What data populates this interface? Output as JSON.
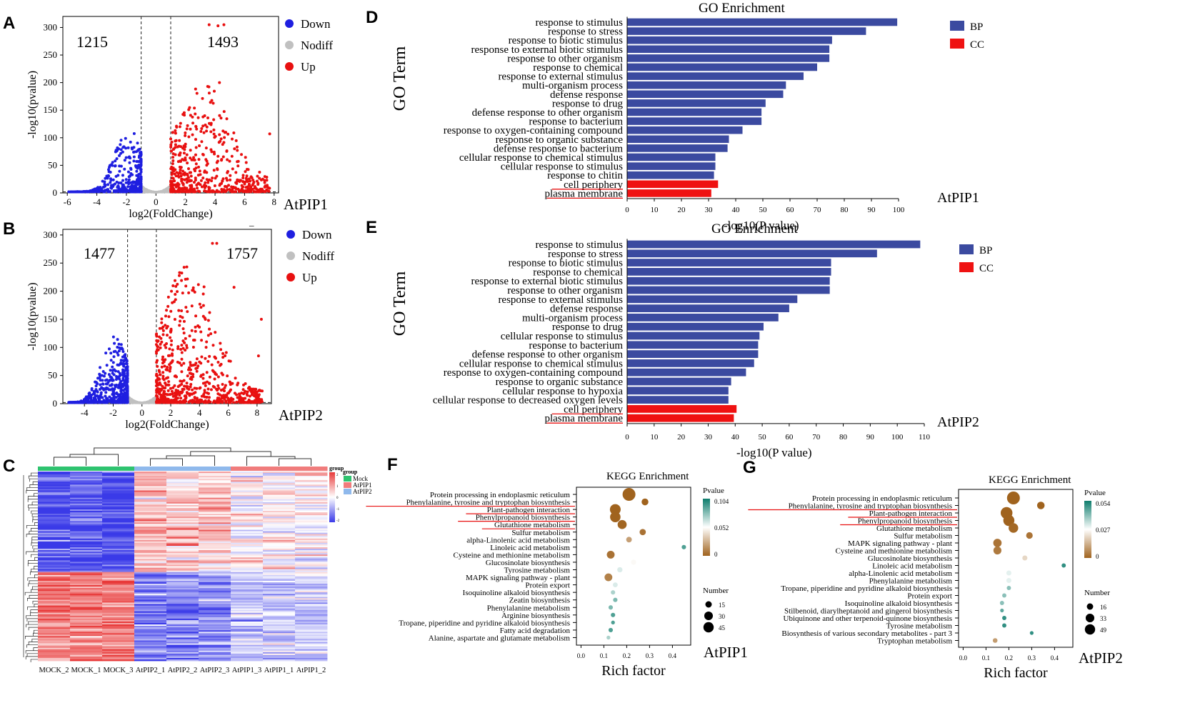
{
  "panel_labels": [
    "A",
    "B",
    "C",
    "D",
    "E",
    "F",
    "G"
  ],
  "chart_data": [
    {
      "id": "A",
      "type": "scatter",
      "subtitle": "volcano plot",
      "xlabel": "log2(FoldChange)",
      "ylabel": "-log10(pvalue)",
      "xlim": [
        -6.3,
        8.3
      ],
      "ylim": [
        0,
        320
      ],
      "xticks": [
        -6,
        -4,
        -2,
        0,
        2,
        4,
        6,
        8
      ],
      "yticks": [
        0,
        50,
        100,
        150,
        200,
        250,
        300
      ],
      "fc_threshold": 1,
      "p_threshold": 0,
      "down_count": "1215",
      "up_count": "1493",
      "legend": [
        "Down",
        "Nodiff",
        "Up"
      ],
      "colors": {
        "Down": "#1f1fe0",
        "Nodiff": "#c0c0c0",
        "Up": "#e81010"
      },
      "sample_label": "AtPIP1",
      "underline": "_",
      "highlight_points": [
        [
          3.6,
          305
        ],
        [
          4.2,
          303
        ],
        [
          4.6,
          305
        ],
        [
          4.3,
          200
        ],
        [
          7.7,
          107
        ],
        [
          3.3,
          140
        ]
      ]
    },
    {
      "id": "B",
      "type": "scatter",
      "subtitle": "volcano plot",
      "xlabel": "log2(FoldChange)",
      "ylabel": "-log10(pvalue)",
      "xlim": [
        -5.5,
        9
      ],
      "ylim": [
        0,
        310
      ],
      "xticks": [
        -4,
        -2,
        0,
        2,
        4,
        6,
        8
      ],
      "yticks": [
        0,
        50,
        100,
        150,
        200,
        250,
        300
      ],
      "fc_threshold": 1,
      "down_count": "1477",
      "up_count": "1757",
      "legend": [
        "Down",
        "Nodiff",
        "Up"
      ],
      "colors": {
        "Down": "#1f1fe0",
        "Nodiff": "#c0c0c0",
        "Up": "#e81010"
      },
      "sample_label": "AtPIP2",
      "highlight_points": [
        [
          4.9,
          285
        ],
        [
          5.2,
          285
        ],
        [
          6.4,
          207
        ],
        [
          8.3,
          150
        ],
        [
          8.1,
          85
        ]
      ]
    },
    {
      "id": "C",
      "type": "heatmap",
      "columns": [
        "MOCK_2",
        "MOCK_1",
        "MOCK_3",
        "AtPIP2_1",
        "AtPIP2_2",
        "AtPIP2_3",
        "AtPIP1_3",
        "AtPIP1_1",
        "AtPIP1_2"
      ],
      "groups": [
        {
          "name": "Mock",
          "color": "#2ec36f"
        },
        {
          "name": "AtPIP1",
          "color": "#f07c7c"
        },
        {
          "name": "AtPIP2",
          "color": "#8fb9ec"
        }
      ],
      "column_groups": [
        "Mock",
        "Mock",
        "Mock",
        "AtPIP2",
        "AtPIP2",
        "AtPIP2",
        "AtPIP1",
        "AtPIP1",
        "AtPIP1"
      ],
      "legend_title": "group",
      "group_header": "group",
      "scale_ticks": [
        "2",
        "1",
        "0",
        "-1",
        "-2"
      ],
      "low_color": "#3a3ae8",
      "mid_color": "#ffffff",
      "high_color": "#e83a3a"
    },
    {
      "id": "D",
      "type": "bar",
      "orientation": "horizontal",
      "title": "GO Enrichment",
      "xlabel": "-log10(P value)",
      "ylabel": "GO Term",
      "xlim": [
        0,
        100
      ],
      "xticks": [
        0,
        10,
        20,
        30,
        40,
        50,
        60,
        70,
        80,
        90,
        100
      ],
      "sample_label": "AtPIP1",
      "legend": [
        {
          "name": "BP",
          "color": "#3b4aa0"
        },
        {
          "name": "CC",
          "color": "#ef1212"
        }
      ],
      "categories": [
        "response to stimulus",
        "response to stress",
        "response to biotic stimulus",
        "response to external biotic stimulus",
        "response to other organism",
        "response to chemical",
        "response to external stimulus",
        "multi-organism process",
        "defense response",
        "response to drug",
        "defense response to other organism",
        "response to bacterium",
        "response to oxygen-containing compound",
        "response to organic substance",
        "defense response to bacterium",
        "cellular response to chemical stimulus",
        "cellular response to stimulus",
        "response to chitin",
        "cell periphery",
        "plasma membrane"
      ],
      "values": [
        99.5,
        88,
        75.5,
        74.5,
        74.5,
        70,
        65,
        58.5,
        57.5,
        51,
        49.5,
        49.5,
        42.5,
        37.5,
        37,
        32.5,
        32.5,
        32,
        33.5,
        31
      ],
      "groups": [
        "BP",
        "BP",
        "BP",
        "BP",
        "BP",
        "BP",
        "BP",
        "BP",
        "BP",
        "BP",
        "BP",
        "BP",
        "BP",
        "BP",
        "BP",
        "BP",
        "BP",
        "BP",
        "CC",
        "CC"
      ]
    },
    {
      "id": "E",
      "type": "bar",
      "orientation": "horizontal",
      "title": "GO Enrichment",
      "xlabel": "-log10(P value)",
      "ylabel": "GO Term",
      "xlim": [
        0,
        110
      ],
      "xticks": [
        0,
        10,
        20,
        30,
        40,
        50,
        60,
        70,
        80,
        90,
        100,
        110
      ],
      "sample_label": "AtPIP2",
      "legend": [
        {
          "name": "BP",
          "color": "#3b4aa0"
        },
        {
          "name": "CC",
          "color": "#ef1212"
        }
      ],
      "categories": [
        "response to stimulus",
        "response to stress",
        "response to biotic stimulus",
        "response to chemical",
        "response to external biotic stimulus",
        "response to other organism",
        "response to external stimulus",
        "defense response",
        "multi-organism process",
        "response to drug",
        "cellular response to stimulus",
        "response to bacterium",
        "defense response to other organism",
        "cellular response to chemical stimulus",
        "response to oxygen-containing compound",
        "response to organic substance",
        "cellular response to hypoxia",
        "cellular response to decreased oxygen levels",
        "cell periphery",
        "plasma membrane"
      ],
      "values": [
        108.5,
        92.5,
        75.5,
        75.5,
        75,
        75,
        63,
        60,
        56,
        50.5,
        49,
        48.5,
        48.5,
        47,
        44,
        38.5,
        37.5,
        37.5,
        40.5,
        39.5
      ],
      "groups": [
        "BP",
        "BP",
        "BP",
        "BP",
        "BP",
        "BP",
        "BP",
        "BP",
        "BP",
        "BP",
        "BP",
        "BP",
        "BP",
        "BP",
        "BP",
        "BP",
        "BP",
        "BP",
        "CC",
        "CC"
      ]
    },
    {
      "id": "F",
      "type": "scatter",
      "subtitle": "bubble plot",
      "title": "KEGG Enrichment",
      "xlabel": "Rich factor",
      "xlim": [
        -0.02,
        0.48
      ],
      "xticks": [
        "0.0",
        "0.1",
        "0.2",
        "0.3",
        "0.4"
      ],
      "sample_label": "AtPIP1",
      "pvalue_legend": {
        "title": "Pvalue",
        "ticks": [
          "0.104",
          "0.052",
          "0"
        ],
        "low_color": "#a0631e",
        "mid_color": "#ffffff",
        "high_color": "#0e7d6d"
      },
      "size_legend": {
        "title": "Number",
        "values": [
          "15",
          "30",
          "45"
        ]
      },
      "underlined": [
        1,
        2,
        3,
        4
      ],
      "categories": [
        "Protein processing in endoplasmic reticulum",
        "Phenylalanine, tyrosine and tryptophan biosynthesis",
        "Plant-pathogen interaction",
        "Phenylpropanoid biosynthesis",
        "Glutathione metabolism",
        "Sulfur metabolism",
        "alpha-Linolenic acid metabolism",
        "Linoleic acid metabolism",
        "Cysteine and methionine metabolism",
        "Glucosinolate biosynthesis",
        "Tyrosine metabolism",
        "MAPK signaling pathway - plant",
        "Protein export",
        "Isoquinoline alkaloid biosynthesis",
        "Zeatin biosynthesis",
        "Phenylalanine metabolism",
        "Arginine biosynthesis",
        "Tropane, piperidine and pyridine alkaloid biosynthesis",
        "Fatty acid degradation",
        "Alanine, aspartate and glutamate metabolism"
      ],
      "rich_factor": [
        0.21,
        0.28,
        0.15,
        0.15,
        0.18,
        0.27,
        0.21,
        0.45,
        0.13,
        0.23,
        0.17,
        0.12,
        0.15,
        0.14,
        0.15,
        0.13,
        0.14,
        0.14,
        0.13,
        0.12
      ],
      "count": [
        45,
        10,
        30,
        28,
        20,
        8,
        6,
        3,
        14,
        5,
        5,
        14,
        4,
        3,
        3,
        3,
        3,
        2,
        3,
        2
      ],
      "pvalue": [
        0,
        0,
        0,
        0,
        0.001,
        0.005,
        0.02,
        0.09,
        0.005,
        0.05,
        0.06,
        0.01,
        0.06,
        0.07,
        0.08,
        0.08,
        0.09,
        0.09,
        0.09,
        0.07
      ]
    },
    {
      "id": "G",
      "type": "scatter",
      "subtitle": "bubble plot",
      "title": "KEGG Enrichment",
      "xlabel": "Rich factor",
      "xlim": [
        -0.02,
        0.48
      ],
      "xticks": [
        "0.0",
        "0.1",
        "0.2",
        "0.3",
        "0.4"
      ],
      "sample_label": "AtPIP2",
      "pvalue_legend": {
        "title": "Pvalue",
        "ticks": [
          "0.054",
          "0.027",
          "0"
        ],
        "low_color": "#a0631e",
        "mid_color": "#ffffff",
        "high_color": "#0e7d6d"
      },
      "size_legend": {
        "title": "Number",
        "values": [
          "16",
          "33",
          "49"
        ]
      },
      "underlined": [
        1,
        2,
        3
      ],
      "categories": [
        "Protein processing in endoplasmic reticulum",
        "Phenylalanine, tyrosine and tryptophan biosynthesis",
        "Plant-pathogen interaction",
        "Phenylpropanoid biosynthesis",
        "Glutathione metabolism",
        "Sulfur metabolism",
        "MAPK signaling pathway - plant",
        "Cysteine and methionine metabolism",
        "Glucosinolate biosynthesis",
        "Linoleic acid metabolism",
        "alpha-Linolenic acid metabolism",
        "Phenylalanine metabolism",
        "Tropane, piperidine and pyridine alkaloid biosynthesis",
        "Protein export",
        "Isoquinoline alkaloid biosynthesis",
        "Stilbenoid, diarylheptanoid and gingerol biosynthesis",
        "Ubiquinone and other terpenoid-quinone biosynthesis",
        "Tyrosine metabolism",
        "Biosynthesis of various secondary metabolites - part 3",
        "Tryptophan metabolism"
      ],
      "rich_factor": [
        0.22,
        0.34,
        0.19,
        0.2,
        0.22,
        0.29,
        0.15,
        0.15,
        0.27,
        0.44,
        0.2,
        0.2,
        0.2,
        0.18,
        0.17,
        0.17,
        0.18,
        0.18,
        0.3,
        0.14
      ],
      "count": [
        49,
        14,
        40,
        35,
        25,
        10,
        18,
        16,
        5,
        3,
        5,
        5,
        3,
        3,
        3,
        2,
        3,
        3,
        2,
        4
      ],
      "pvalue": [
        0,
        0,
        0,
        0,
        0.001,
        0.003,
        0.003,
        0.004,
        0.02,
        0.05,
        0.03,
        0.03,
        0.04,
        0.04,
        0.04,
        0.045,
        0.05,
        0.05,
        0.05,
        0.01
      ]
    }
  ]
}
